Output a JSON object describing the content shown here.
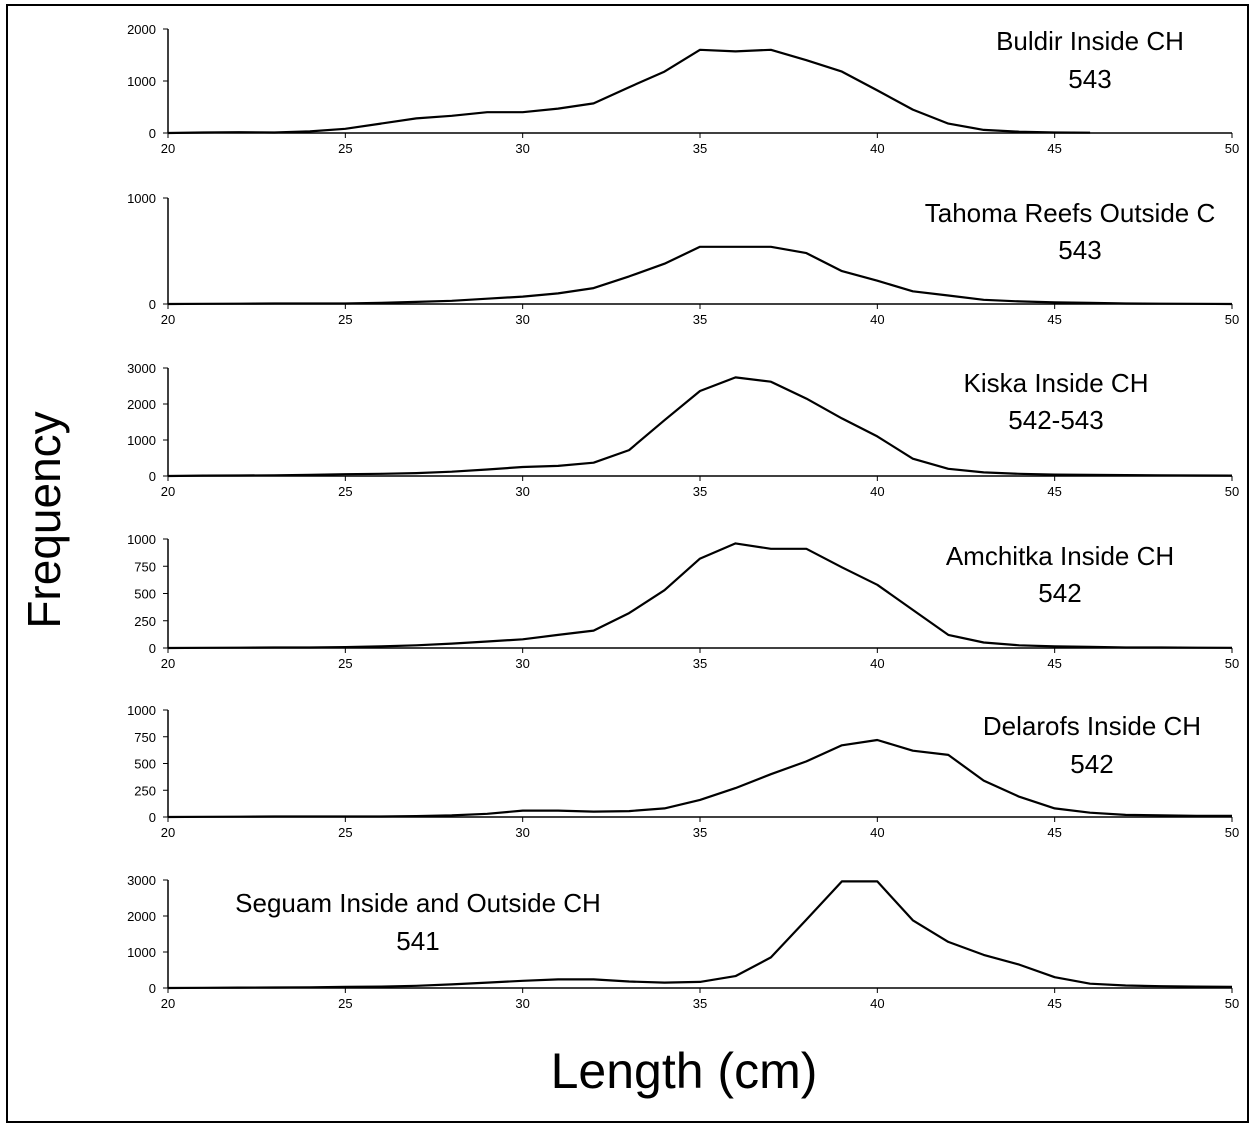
{
  "figure": {
    "ylabel": "Frequency",
    "xlabel": "Length (cm)"
  },
  "chart_data": [
    {
      "type": "line",
      "title": "Buldir Inside CH",
      "subtitle": "543",
      "x": [
        20,
        21,
        22,
        23,
        24,
        25,
        26,
        27,
        28,
        29,
        30,
        31,
        32,
        33,
        34,
        35,
        36,
        37,
        38,
        39,
        40,
        41,
        42,
        43,
        44,
        45,
        46
      ],
      "values": [
        0,
        10,
        15,
        10,
        30,
        80,
        180,
        280,
        330,
        400,
        400,
        470,
        570,
        880,
        1180,
        1600,
        1570,
        1600,
        1400,
        1180,
        820,
        450,
        180,
        60,
        25,
        10,
        5
      ],
      "xlim": [
        20,
        50
      ],
      "ylim": [
        0,
        2000
      ],
      "xticks": [
        20,
        25,
        30,
        35,
        40,
        45,
        50
      ],
      "yticks": [
        0,
        1000,
        2000
      ]
    },
    {
      "type": "line",
      "title": "Tahoma Reefs Outside C",
      "subtitle": "543",
      "x": [
        20,
        21,
        22,
        23,
        24,
        25,
        26,
        27,
        28,
        29,
        30,
        31,
        32,
        33,
        34,
        35,
        36,
        37,
        38,
        39,
        40,
        41,
        42,
        43,
        44,
        45,
        46,
        47,
        48,
        49,
        50
      ],
      "values": [
        0,
        2,
        3,
        5,
        5,
        5,
        10,
        20,
        30,
        50,
        70,
        100,
        150,
        260,
        380,
        540,
        540,
        540,
        480,
        310,
        220,
        120,
        80,
        40,
        25,
        15,
        10,
        5,
        3,
        2,
        0
      ],
      "xlim": [
        20,
        50
      ],
      "ylim": [
        0,
        1000
      ],
      "xticks": [
        20,
        25,
        30,
        35,
        40,
        45,
        50
      ],
      "yticks": [
        0,
        1000
      ]
    },
    {
      "type": "line",
      "title": "Kiska Inside CH",
      "subtitle": "542-543",
      "x": [
        20,
        21,
        22,
        23,
        24,
        25,
        26,
        27,
        28,
        29,
        30,
        31,
        32,
        33,
        34,
        35,
        36,
        37,
        38,
        39,
        40,
        41,
        42,
        43,
        44,
        45,
        46,
        47,
        48,
        49,
        50
      ],
      "values": [
        0,
        10,
        15,
        20,
        30,
        50,
        60,
        80,
        120,
        180,
        250,
        280,
        370,
        720,
        1550,
        2360,
        2740,
        2620,
        2150,
        1600,
        1100,
        480,
        200,
        100,
        60,
        40,
        30,
        25,
        20,
        15,
        10
      ],
      "xlim": [
        20,
        50
      ],
      "ylim": [
        0,
        3000
      ],
      "xticks": [
        20,
        25,
        30,
        35,
        40,
        45,
        50
      ],
      "yticks": [
        0,
        1000,
        2000,
        3000
      ]
    },
    {
      "type": "line",
      "title": "Amchitka Inside CH",
      "subtitle": "542",
      "x": [
        20,
        21,
        22,
        23,
        24,
        25,
        26,
        27,
        28,
        29,
        30,
        31,
        32,
        33,
        34,
        35,
        36,
        37,
        38,
        39,
        40,
        41,
        42,
        43,
        44,
        45,
        46,
        47,
        48,
        49,
        50
      ],
      "values": [
        0,
        2,
        3,
        5,
        5,
        8,
        15,
        25,
        40,
        60,
        80,
        120,
        160,
        320,
        530,
        820,
        960,
        910,
        910,
        740,
        580,
        350,
        120,
        50,
        25,
        15,
        10,
        5,
        5,
        3,
        2
      ],
      "xlim": [
        20,
        50
      ],
      "ylim": [
        0,
        1000
      ],
      "xticks": [
        20,
        25,
        30,
        35,
        40,
        45,
        50
      ],
      "yticks": [
        0,
        250,
        500,
        750,
        1000
      ]
    },
    {
      "type": "line",
      "title": "Delarofs Inside CH",
      "subtitle": "542",
      "x": [
        20,
        21,
        22,
        23,
        24,
        25,
        26,
        27,
        28,
        29,
        30,
        31,
        32,
        33,
        34,
        35,
        36,
        37,
        38,
        39,
        40,
        41,
        42,
        43,
        44,
        45,
        46,
        47,
        48,
        49,
        50
      ],
      "values": [
        0,
        2,
        3,
        5,
        5,
        5,
        5,
        8,
        15,
        30,
        60,
        60,
        50,
        55,
        80,
        160,
        270,
        400,
        520,
        670,
        720,
        620,
        580,
        340,
        190,
        80,
        40,
        20,
        15,
        10,
        10
      ],
      "xlim": [
        20,
        50
      ],
      "ylim": [
        0,
        1000
      ],
      "xticks": [
        20,
        25,
        30,
        35,
        40,
        45,
        50
      ],
      "yticks": [
        0,
        250,
        500,
        750,
        1000
      ]
    },
    {
      "type": "line",
      "title": "Seguam Inside and Outside CH",
      "subtitle": "541",
      "x": [
        20,
        21,
        22,
        23,
        24,
        25,
        26,
        27,
        28,
        29,
        30,
        31,
        32,
        33,
        34,
        35,
        36,
        37,
        38,
        39,
        40,
        41,
        42,
        43,
        44,
        45,
        46,
        47,
        48,
        49,
        50
      ],
      "values": [
        0,
        5,
        10,
        15,
        20,
        30,
        40,
        60,
        100,
        150,
        200,
        240,
        240,
        180,
        150,
        170,
        330,
        850,
        1900,
        2960,
        2960,
        1880,
        1280,
        920,
        650,
        300,
        120,
        70,
        50,
        40,
        30
      ],
      "xlim": [
        20,
        50
      ],
      "ylim": [
        0,
        3000
      ],
      "xticks": [
        20,
        25,
        30,
        35,
        40,
        45,
        50
      ],
      "yticks": [
        0,
        1000,
        2000,
        3000
      ]
    }
  ]
}
